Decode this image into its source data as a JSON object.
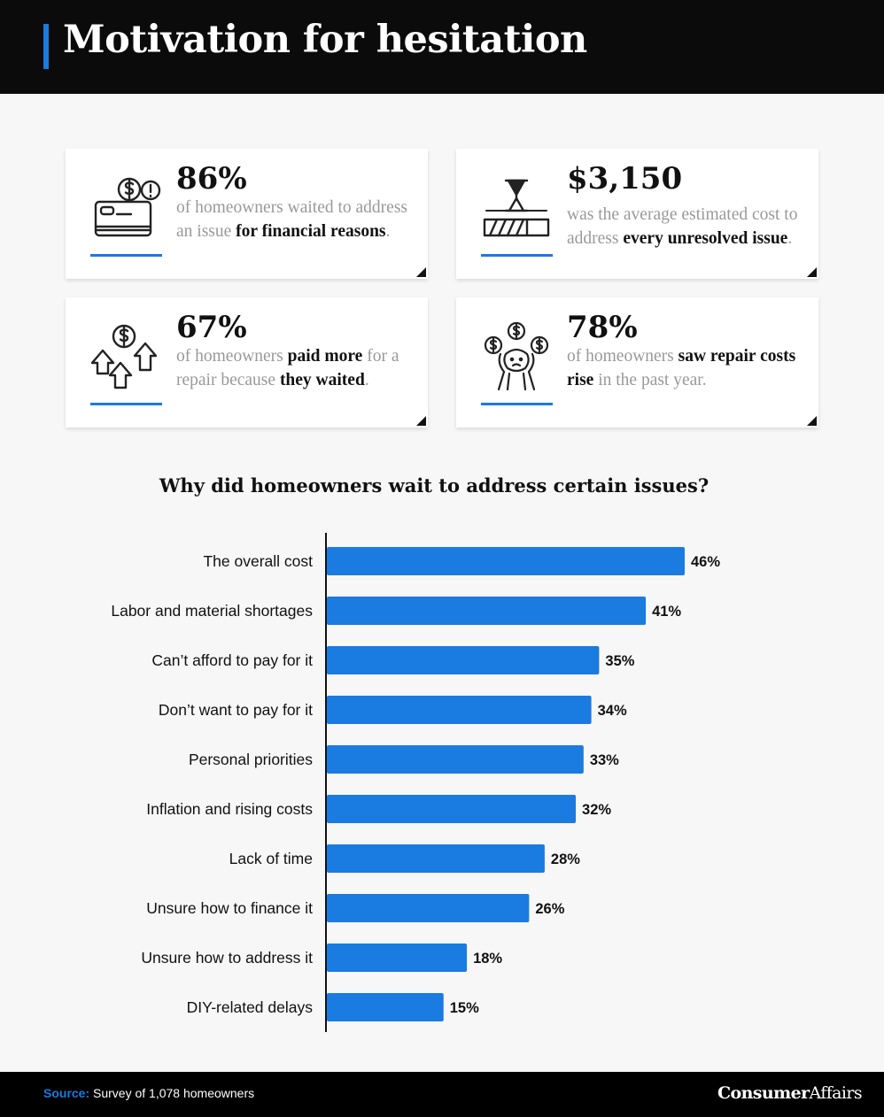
{
  "header": {
    "title": "Motivation for hesitation"
  },
  "stats": [
    {
      "value": "86%",
      "icon": "credit-card-money-alert-icon",
      "segments": [
        {
          "text": "of homeowners waited to address an issue ",
          "bold": false
        },
        {
          "text": "for financial reasons",
          "bold": true
        },
        {
          "text": ".",
          "bold": false
        }
      ]
    },
    {
      "value": "$3,150",
      "icon": "hourglass-progress-icon",
      "segments": [
        {
          "text": "was the average estimated cost to address ",
          "bold": false
        },
        {
          "text": "every unresolved issue",
          "bold": true
        },
        {
          "text": ".",
          "bold": false
        }
      ]
    },
    {
      "value": "67%",
      "icon": "money-arrows-up-icon",
      "segments": [
        {
          "text": "of homeowners ",
          "bold": false
        },
        {
          "text": "paid more",
          "bold": true
        },
        {
          "text": " for a repair because ",
          "bold": false
        },
        {
          "text": "they waited",
          "bold": true
        },
        {
          "text": ".",
          "bold": false
        }
      ]
    },
    {
      "value": "78%",
      "icon": "stressed-person-coins-icon",
      "segments": [
        {
          "text": "of homeowners ",
          "bold": false
        },
        {
          "text": "saw repair costs rise",
          "bold": true
        },
        {
          "text": " in the past year.",
          "bold": false
        }
      ]
    }
  ],
  "chart_data": {
    "type": "bar",
    "orientation": "horizontal",
    "title": "Why did homeowners wait to address certain issues?",
    "categories": [
      "The overall cost",
      "Labor and material shortages",
      "Can’t afford to pay for it",
      "Don’t want to pay for it",
      "Personal priorities",
      "Inflation and rising costs",
      "Lack of time",
      "Unsure how to finance it",
      "Unsure how to address it",
      "DIY-related delays"
    ],
    "values": [
      46,
      41,
      35,
      34,
      33,
      32,
      28,
      26,
      18,
      15
    ],
    "value_suffix": "%",
    "bar_color": "#1a7be0",
    "grid": false
  },
  "footer": {
    "source_label": "Source:",
    "source_text": " Survey of 1,078 homeowners",
    "logo_part1": "Consumer",
    "logo_part2": "Affairs"
  }
}
